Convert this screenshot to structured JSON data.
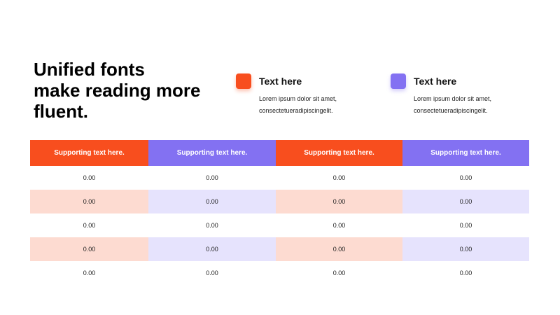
{
  "title_lines": [
    "Unified fonts",
    "make reading more",
    "fluent."
  ],
  "features": [
    {
      "title": "Text here",
      "body_lines": [
        "Lorem ipsum dolor sit amet,",
        "consectetueradipiscingelit."
      ],
      "color": "#f84e1e"
    },
    {
      "title": "Text here",
      "body_lines": [
        "Lorem ipsum dolor sit amet,",
        "consectetueradipiscingelit."
      ],
      "color": "#8371f2"
    }
  ],
  "colors": {
    "orange": "#f84e1e",
    "purple": "#8371f2",
    "orange_light": "#fddbd1",
    "purple_light": "#e6e3fd",
    "white": "#ffffff"
  },
  "table": {
    "headers": [
      {
        "label": "Supporting text here.",
        "color": "#f84e1e"
      },
      {
        "label": "Supporting text here.",
        "color": "#8371f2"
      },
      {
        "label": "Supporting text here.",
        "color": "#f84e1e"
      },
      {
        "label": "Supporting text here.",
        "color": "#8371f2"
      }
    ],
    "rows": [
      [
        "0.00",
        "0.00",
        "0.00",
        "0.00"
      ],
      [
        "0.00",
        "0.00",
        "0.00",
        "0.00"
      ],
      [
        "0.00",
        "0.00",
        "0.00",
        "0.00"
      ],
      [
        "0.00",
        "0.00",
        "0.00",
        "0.00"
      ],
      [
        "0.00",
        "0.00",
        "0.00",
        "0.00"
      ]
    ],
    "shaded_rows": [
      false,
      true,
      false,
      true,
      false
    ],
    "shade_colors": [
      "#fddbd1",
      "#e6e3fd",
      "#fddbd1",
      "#e6e3fd"
    ]
  }
}
